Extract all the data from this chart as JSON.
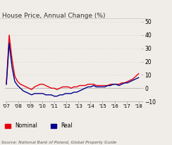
{
  "title": "House Price, Annual Change (%)",
  "source": "Source: National Bank of Poland, Global Property Guide",
  "ylim": [
    -10,
    50
  ],
  "yticks": [
    -10,
    0,
    10,
    20,
    30,
    40,
    50
  ],
  "background_color": "#f0ede8",
  "nominal_color": "#e8000d",
  "real_color": "#00008b",
  "x_labels": [
    "'07",
    "'08",
    "'09",
    "'10",
    "'11",
    "'12",
    "'13",
    "'14",
    "'15",
    "'16",
    "'17",
    "'18"
  ],
  "nominal": [
    3,
    40,
    22,
    9,
    5,
    3,
    2,
    1,
    0,
    -1,
    1,
    2,
    3,
    3,
    2,
    1,
    0,
    0,
    -1,
    0,
    1,
    1,
    1,
    0,
    1,
    1,
    2,
    2,
    2,
    3,
    3,
    3,
    2,
    2,
    2,
    2,
    2,
    3,
    3,
    3,
    3,
    4,
    4,
    5,
    6,
    7,
    9,
    11
  ],
  "real": [
    3,
    34,
    16,
    5,
    2,
    0,
    -2,
    -3,
    -4,
    -5,
    -4,
    -4,
    -4,
    -4,
    -5,
    -5,
    -5,
    -6,
    -6,
    -5,
    -5,
    -4,
    -4,
    -4,
    -3,
    -3,
    -2,
    -1,
    0,
    1,
    1,
    2,
    1,
    1,
    1,
    1,
    2,
    2,
    3,
    3,
    2,
    3,
    4,
    4,
    5,
    6,
    7,
    8
  ]
}
